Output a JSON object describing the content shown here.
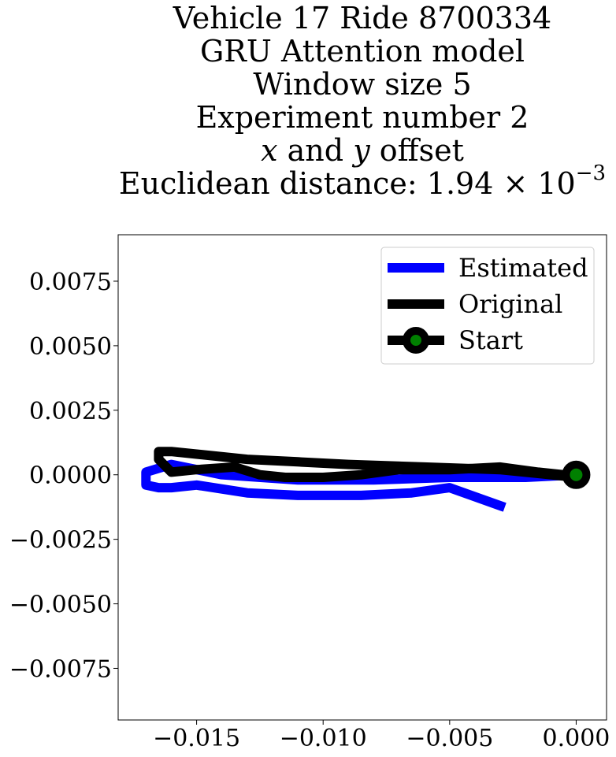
{
  "chart_data": {
    "type": "line",
    "title_lines": [
      "Vehicle 17 Ride 8700334",
      "GRU Attention model",
      "Window size 5",
      "Experiment number 2",
      {
        "var1": "x",
        "mid": " and ",
        "var2": "y",
        "rest": " offset"
      },
      {
        "prefix": "Euclidean distance: 1.94 × 10",
        "exp": "−3"
      }
    ],
    "xlabel": "",
    "ylabel": "",
    "xlim": [
      -0.0181,
      0.0012
    ],
    "ylim": [
      -0.0095,
      0.0093
    ],
    "xticks": [
      -0.015,
      -0.01,
      -0.005,
      0.0
    ],
    "xtick_labels": [
      "−0.015",
      "−0.010",
      "−0.005",
      "0.000"
    ],
    "yticks": [
      0.0075,
      0.005,
      0.0025,
      0.0,
      -0.0025,
      -0.005,
      -0.0075
    ],
    "ytick_labels": [
      "0.0075",
      "0.0050",
      "0.0025",
      "0.0000",
      "−0.0025",
      "−0.0050",
      "−0.0075"
    ],
    "grid": false,
    "legend_position": "upper right",
    "series": [
      {
        "name": "Estimated",
        "color": "#0000ff",
        "x": [
          0.0,
          -0.002,
          -0.005,
          -0.008,
          -0.011,
          -0.014,
          -0.016,
          -0.017,
          -0.017,
          -0.0165,
          -0.016,
          -0.015,
          -0.013,
          -0.011,
          -0.0085,
          -0.0065,
          -0.005,
          -0.003
        ],
        "y": [
          0.0,
          -0.0001,
          -0.0001,
          -0.0002,
          -0.0002,
          0.0,
          0.0004,
          0.0001,
          -0.0004,
          -0.0005,
          -0.0005,
          -0.0004,
          -0.0007,
          -0.0008,
          -0.0008,
          -0.0007,
          -0.0005,
          -0.0012
        ]
      },
      {
        "name": "Original",
        "color": "#000000",
        "x": [
          0.0,
          -0.0005,
          -0.0015,
          -0.003,
          -0.005,
          -0.007,
          -0.0085,
          -0.01,
          -0.0115,
          -0.0125,
          -0.0135,
          -0.015,
          -0.016,
          -0.0165,
          -0.0165,
          -0.016,
          -0.015,
          -0.013,
          -0.011,
          -0.009,
          -0.006,
          -0.003,
          -0.001,
          0.0
        ],
        "y": [
          0.0,
          0.0,
          0.0001,
          0.0003,
          0.0002,
          0.0002,
          0.0,
          -0.0001,
          -0.0001,
          0.0,
          0.0003,
          0.0002,
          0.0001,
          0.0006,
          0.0009,
          0.0009,
          0.0008,
          0.0006,
          0.0005,
          0.0004,
          0.0003,
          0.0002,
          0.0,
          -0.0001
        ]
      }
    ],
    "start_point": {
      "name": "Start",
      "x": 0.0,
      "y": 0.0,
      "marker_edge": "#000000",
      "marker_face": "#008000"
    }
  }
}
